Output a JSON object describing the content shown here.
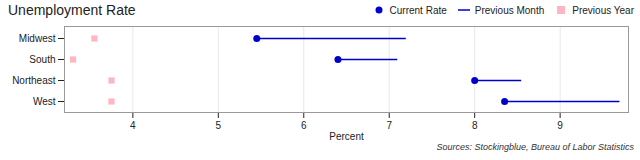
{
  "chart_data": {
    "type": "dot",
    "title": "Unemployment Rate",
    "xlabel": "Percent",
    "annotations": [
      "Sources: Stockingblue, Bureau of Labor Statistics"
    ],
    "categories": [
      "Midwest",
      "South",
      "Northeast",
      "West"
    ],
    "series": [
      {
        "name": "Current Rate",
        "color": "#0000CC",
        "marker": "circle",
        "values": [
          5.45,
          6.4,
          8.0,
          8.35
        ]
      },
      {
        "name": "Previous Month",
        "color": "#0000CC",
        "type": "line",
        "line_style": "solid",
        "values": [
          7.2,
          7.1,
          8.55,
          9.7
        ]
      },
      {
        "name": "Previous Year",
        "color": "#FFB6C1",
        "marker": "square",
        "values": [
          3.55,
          3.3,
          3.75,
          3.75
        ]
      }
    ],
    "xlim": [
      3.2,
      9.8
    ],
    "xticks": [
      4,
      5,
      6,
      7,
      8,
      9
    ],
    "grid": true,
    "legend": "upper right"
  }
}
